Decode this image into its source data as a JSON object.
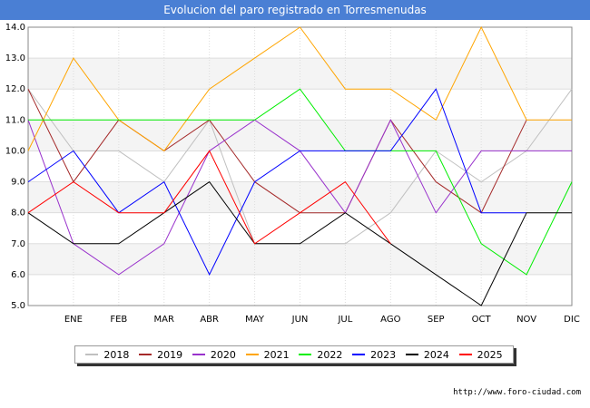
{
  "header": {
    "title": "Evolucion del paro registrado en Torresmenudas"
  },
  "footer": {
    "url": "http://www.foro-ciudad.com"
  },
  "chart_data": {
    "type": "line",
    "title": "Evolucion del paro registrado en Torresmenudas",
    "xlabel": "",
    "ylabel": "",
    "ylim": [
      5,
      14
    ],
    "yticks": [
      "5.0",
      "6.0",
      "7.0",
      "8.0",
      "9.0",
      "10.0",
      "11.0",
      "12.0",
      "13.0",
      "14.0"
    ],
    "categories": [
      "",
      "ENE",
      "FEB",
      "MAR",
      "ABR",
      "MAY",
      "JUN",
      "JUL",
      "AGO",
      "SEP",
      "OCT",
      "NOV",
      "DIC"
    ],
    "legend_position": "bottom",
    "series": [
      {
        "name": "2018",
        "color": "#c0c0c0",
        "values": [
          12,
          10,
          10,
          9,
          11,
          7,
          7,
          7,
          8,
          10,
          9,
          10,
          12
        ]
      },
      {
        "name": "2019",
        "color": "#a52a2a",
        "values": [
          12,
          9,
          11,
          10,
          11,
          9,
          8,
          8,
          11,
          9,
          8,
          11,
          null
        ]
      },
      {
        "name": "2020",
        "color": "#9932cc",
        "values": [
          11,
          7,
          6,
          7,
          10,
          11,
          10,
          8,
          11,
          8,
          10,
          10,
          10
        ]
      },
      {
        "name": "2021",
        "color": "#ffa500",
        "values": [
          10,
          13,
          11,
          10,
          12,
          13,
          14,
          12,
          12,
          11,
          14,
          11,
          11
        ]
      },
      {
        "name": "2022",
        "color": "#00ee00",
        "values": [
          11,
          11,
          11,
          11,
          11,
          11,
          12,
          10,
          10,
          10,
          7,
          6,
          9
        ]
      },
      {
        "name": "2023",
        "color": "#0000ff",
        "values": [
          9,
          10,
          8,
          9,
          6,
          9,
          10,
          10,
          10,
          12,
          8,
          8,
          null
        ]
      },
      {
        "name": "2024",
        "color": "#000000",
        "values": [
          8,
          7,
          7,
          8,
          9,
          7,
          7,
          8,
          7,
          6,
          5,
          8,
          8
        ]
      },
      {
        "name": "2025",
        "color": "#ff0000",
        "values": [
          8,
          9,
          8,
          8,
          10,
          7,
          8,
          9,
          7,
          null,
          null,
          null,
          null
        ]
      }
    ]
  }
}
